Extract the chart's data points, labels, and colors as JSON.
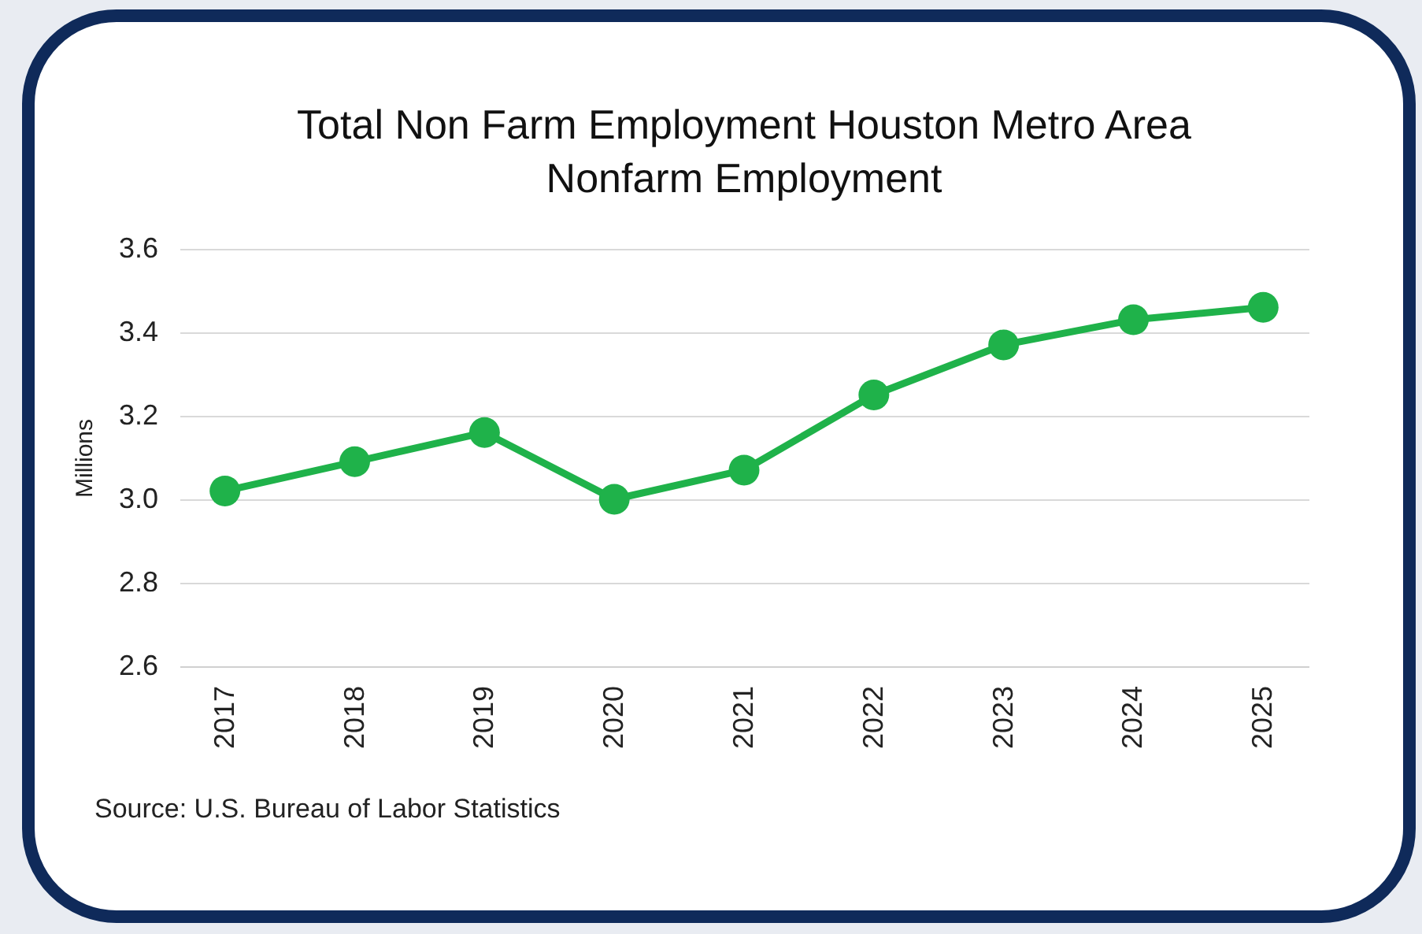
{
  "chart_data": {
    "type": "line",
    "title": "Total Non Farm Employment Houston Metro Area",
    "subtitle": "Nonfarm Employment",
    "ylabel": "Millions",
    "categories": [
      "2017",
      "2018",
      "2019",
      "2020",
      "2021",
      "2022",
      "2023",
      "2024",
      "2025"
    ],
    "series": [
      {
        "color": "#1fb24a",
        "values": [
          3.02,
          3.09,
          3.16,
          3.0,
          3.07,
          3.25,
          3.37,
          3.43,
          3.46
        ]
      }
    ],
    "ylim": [
      2.6,
      3.6
    ],
    "yticks": [
      {
        "value": 2.6,
        "label": "2.6"
      },
      {
        "value": 2.8,
        "label": "2.8"
      },
      {
        "value": 3.0,
        "label": "3.0"
      },
      {
        "value": 3.2,
        "label": "3.2"
      },
      {
        "value": 3.4,
        "label": "3.4"
      },
      {
        "value": 3.6,
        "label": "3.6"
      }
    ],
    "grid": "y",
    "marker": "circle",
    "line_style": "solid",
    "legend": false,
    "annotations": [
      "Source: U.S. Bureau of Labor Statistics"
    ]
  }
}
